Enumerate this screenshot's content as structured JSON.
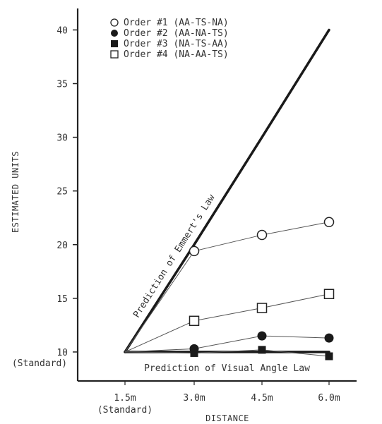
{
  "chart_data": {
    "type": "line",
    "xlabel": "DISTANCE",
    "ylabel": "ESTIMATED UNITS",
    "categories": [
      "1.5m",
      "3.0m",
      "4.5m",
      "6.0m"
    ],
    "x_tick_labels": [
      "1.5m",
      "3.0m",
      "4.5m",
      "6.0m"
    ],
    "x_tick_sublabel": "(Standard)",
    "y_ticks": [
      10,
      15,
      20,
      25,
      30,
      35,
      40
    ],
    "y_tick_sublabel": "(Standard)",
    "ylim": [
      7.3,
      42
    ],
    "grid": false,
    "legend_position": "top-left",
    "series": [
      {
        "name": "Order #1 (AA-TS-NA)",
        "marker": "open-circle",
        "values": [
          10,
          19.4,
          20.9,
          22.1
        ]
      },
      {
        "name": "Order #2 (AA-NA-TS)",
        "marker": "filled-circle",
        "values": [
          10,
          10.3,
          11.5,
          11.3
        ]
      },
      {
        "name": "Order #3 (NA-TS-AA)",
        "marker": "filled-square",
        "values": [
          10,
          9.9,
          10.2,
          9.6
        ]
      },
      {
        "name": "Order #4 (NA-AA-TS)",
        "marker": "open-square",
        "values": [
          10,
          12.9,
          14.1,
          15.4
        ]
      }
    ],
    "prediction_lines": [
      {
        "label": "Prediction of Emmert's Law",
        "values": [
          10,
          20,
          30,
          40
        ]
      },
      {
        "label": "Prediction of Visual Angle Law",
        "values": [
          10,
          10,
          10,
          10
        ]
      }
    ]
  }
}
